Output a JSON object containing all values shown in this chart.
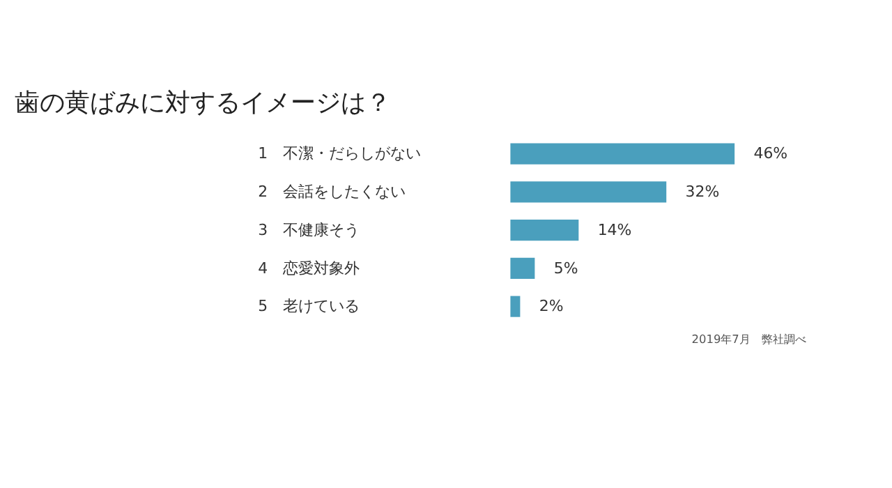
{
  "chart_data": {
    "type": "bar",
    "orientation": "horizontal",
    "title": "歯の黄ばみに対するイメージは？",
    "categories": [
      "1　不潔・だらしがない",
      "2　会話をしたくない",
      "3　不健康そう",
      "4　恋愛対象外",
      "5　老けている"
    ],
    "values": [
      46,
      32,
      14,
      5,
      2
    ],
    "value_labels": [
      "46%",
      "32%",
      "14%",
      "5%",
      "2%"
    ],
    "color": "#4a9fbd",
    "annotations": [
      "2019年7月　弊社調べ"
    ],
    "grid": false,
    "tick_labels": "y"
  }
}
